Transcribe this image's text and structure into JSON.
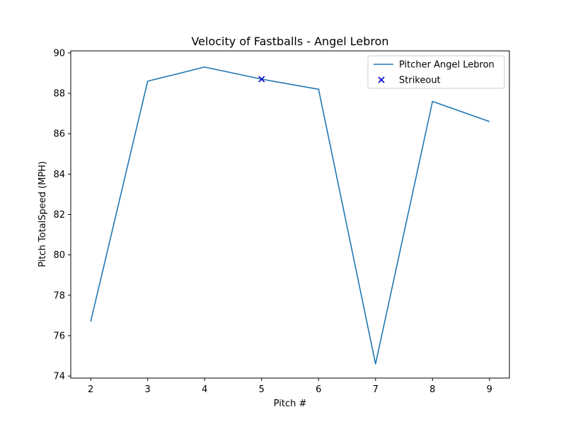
{
  "chart_data": {
    "type": "line",
    "title": "Velocity of Fastballs - Angel Lebron",
    "xlabel": "Pitch #",
    "ylabel": "Pitch TotalSpeed (MPH)",
    "xlim": [
      1.65,
      9.35
    ],
    "ylim": [
      73.9,
      90.1
    ],
    "xticks": [
      2,
      3,
      4,
      5,
      6,
      7,
      8,
      9
    ],
    "yticks": [
      74,
      76,
      78,
      80,
      82,
      84,
      86,
      88,
      90
    ],
    "grid": false,
    "legend_position": "top-right",
    "series": [
      {
        "name": "Pitcher Angel Lebron",
        "kind": "line",
        "color": "#1f77b4",
        "x": [
          2,
          3,
          4,
          5,
          6,
          7,
          8,
          9
        ],
        "y": [
          76.7,
          88.6,
          89.3,
          88.7,
          88.2,
          74.6,
          87.6,
          86.6
        ]
      },
      {
        "name": "Strikeout",
        "kind": "scatter",
        "marker": "x",
        "color": "#0000cc",
        "x": [
          5
        ],
        "y": [
          88.7
        ]
      }
    ]
  }
}
